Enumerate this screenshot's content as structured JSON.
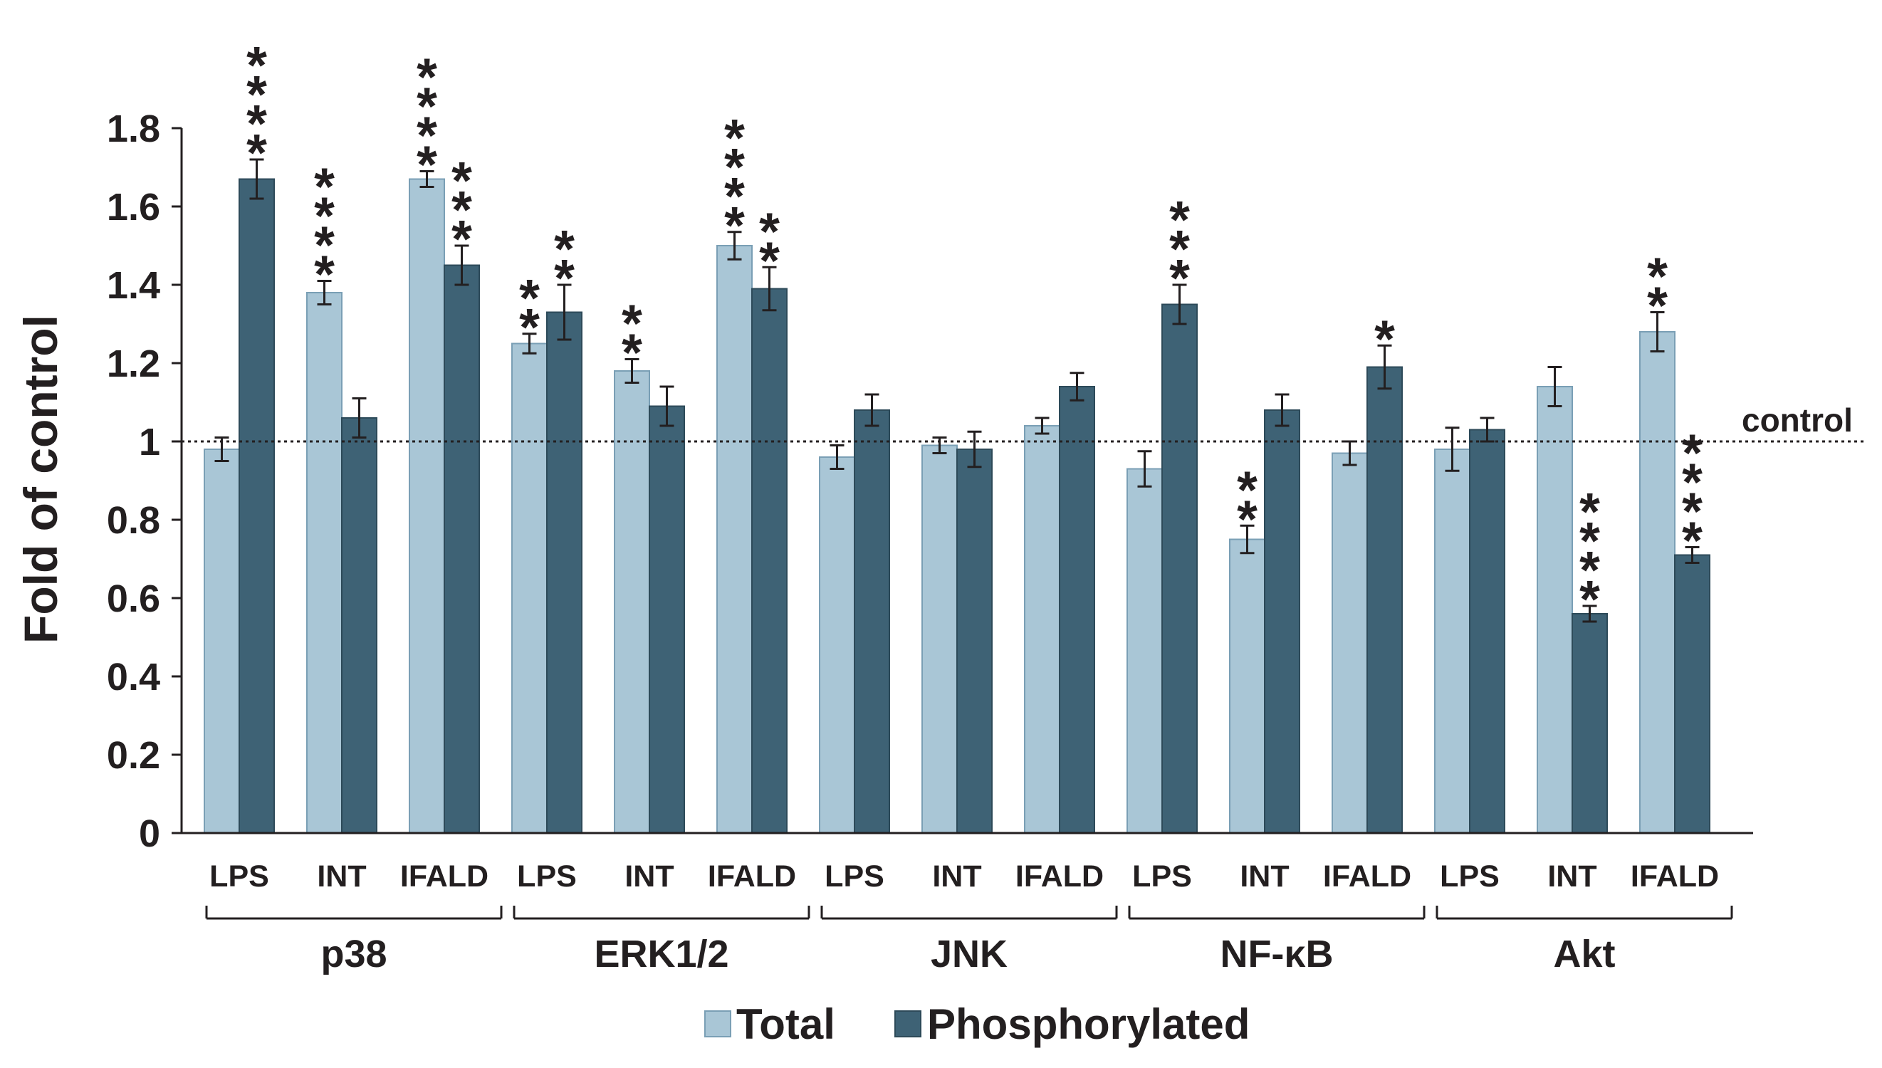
{
  "chart_data": {
    "type": "bar",
    "ylabel": "Fold of control",
    "xlabel": "",
    "ylim": [
      0,
      1.8
    ],
    "yticks": [
      "0",
      "0.2",
      "0.4",
      "0.6",
      "0.8",
      "1",
      "1.2",
      "1.4",
      "1.6",
      "1.8"
    ],
    "reference_line": {
      "value": 1,
      "label": "control",
      "style": "dotted"
    },
    "grid": false,
    "legend_position": "bottom",
    "colors": {
      "Total": "#a9c6d6",
      "Phosphorylated": "#3e6275",
      "Total_edge": "#7a9fb5",
      "Phosphorylated_edge": "#2d4a59"
    },
    "groups": [
      "p38",
      "ERK1/2",
      "JNK",
      "NF-κB",
      "Akt"
    ],
    "subcategories": [
      "LPS",
      "INT",
      "IFALD"
    ],
    "categories": [
      "LPS",
      "INT",
      "IFALD",
      "LPS",
      "INT",
      "IFALD",
      "LPS",
      "INT",
      "IFALD",
      "LPS",
      "INT",
      "IFALD",
      "LPS",
      "INT",
      "IFALD"
    ],
    "series": [
      {
        "name": "Total",
        "values": [
          0.98,
          1.38,
          1.67,
          1.25,
          1.18,
          1.5,
          0.96,
          0.99,
          1.04,
          0.93,
          0.75,
          0.97,
          0.98,
          1.14,
          1.28
        ],
        "errors": [
          0.03,
          0.03,
          0.02,
          0.025,
          0.03,
          0.035,
          0.03,
          0.02,
          0.02,
          0.045,
          0.035,
          0.03,
          0.055,
          0.05,
          0.05
        ],
        "significance": [
          "",
          "****",
          "****",
          "**",
          "**",
          "****",
          "",
          "",
          "",
          "",
          "**",
          "",
          "",
          "",
          "**"
        ]
      },
      {
        "name": "Phosphorylated",
        "values": [
          1.67,
          1.06,
          1.45,
          1.33,
          1.09,
          1.39,
          1.08,
          0.98,
          1.14,
          1.35,
          1.08,
          1.19,
          1.03,
          0.56,
          0.71
        ],
        "errors": [
          0.05,
          0.05,
          0.05,
          0.07,
          0.05,
          0.055,
          0.04,
          0.045,
          0.035,
          0.05,
          0.04,
          0.055,
          0.03,
          0.02,
          0.02
        ],
        "significance": [
          "****",
          "",
          "***",
          "**",
          "",
          "**",
          "",
          "",
          "",
          "***",
          "",
          "*",
          "",
          "****",
          "****"
        ]
      }
    ]
  }
}
